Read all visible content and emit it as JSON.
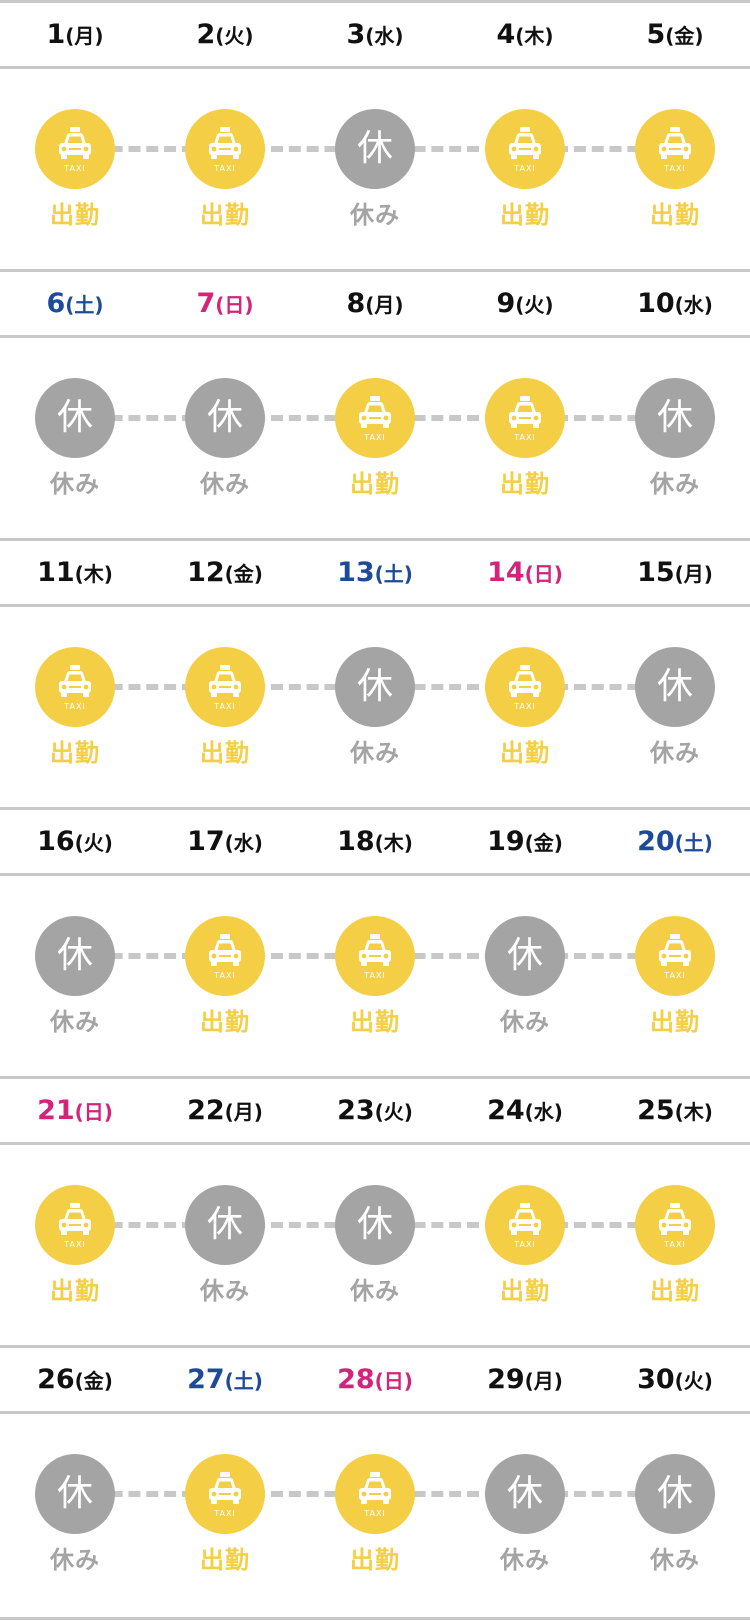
{
  "colors": {
    "work": "#f4cf46",
    "rest": "#a4a4a4",
    "saturday": "#1d4a9a",
    "sunday": "#d4247a",
    "weekday": "#111111",
    "divider": "#c8c8c8"
  },
  "icons": {
    "work": "taxi-icon",
    "rest": "rest-kanji-icon"
  },
  "labels": {
    "work": "出勤",
    "rest": "休み",
    "rest_glyph": "休",
    "taxi_text": "TAXI"
  },
  "weeks": [
    {
      "days": [
        {
          "day": "1",
          "dow": "(月)",
          "type": "weekday",
          "status": "work"
        },
        {
          "day": "2",
          "dow": "(火)",
          "type": "weekday",
          "status": "work"
        },
        {
          "day": "3",
          "dow": "(水)",
          "type": "weekday",
          "status": "rest"
        },
        {
          "day": "4",
          "dow": "(木)",
          "type": "weekday",
          "status": "work"
        },
        {
          "day": "5",
          "dow": "(金)",
          "type": "weekday",
          "status": "work"
        }
      ]
    },
    {
      "days": [
        {
          "day": "6",
          "dow": "(土)",
          "type": "saturday",
          "status": "rest"
        },
        {
          "day": "7",
          "dow": "(日)",
          "type": "sunday",
          "status": "rest"
        },
        {
          "day": "8",
          "dow": "(月)",
          "type": "weekday",
          "status": "work"
        },
        {
          "day": "9",
          "dow": "(火)",
          "type": "weekday",
          "status": "work"
        },
        {
          "day": "10",
          "dow": "(水)",
          "type": "weekday",
          "status": "rest"
        }
      ]
    },
    {
      "days": [
        {
          "day": "11",
          "dow": "(木)",
          "type": "weekday",
          "status": "work"
        },
        {
          "day": "12",
          "dow": "(金)",
          "type": "weekday",
          "status": "work"
        },
        {
          "day": "13",
          "dow": "(土)",
          "type": "saturday",
          "status": "rest"
        },
        {
          "day": "14",
          "dow": "(日)",
          "type": "sunday",
          "status": "work"
        },
        {
          "day": "15",
          "dow": "(月)",
          "type": "weekday",
          "status": "rest"
        }
      ]
    },
    {
      "days": [
        {
          "day": "16",
          "dow": "(火)",
          "type": "weekday",
          "status": "rest"
        },
        {
          "day": "17",
          "dow": "(水)",
          "type": "weekday",
          "status": "work"
        },
        {
          "day": "18",
          "dow": "(木)",
          "type": "weekday",
          "status": "work"
        },
        {
          "day": "19",
          "dow": "(金)",
          "type": "weekday",
          "status": "rest"
        },
        {
          "day": "20",
          "dow": "(土)",
          "type": "saturday",
          "status": "work"
        }
      ]
    },
    {
      "days": [
        {
          "day": "21",
          "dow": "(日)",
          "type": "sunday",
          "status": "work"
        },
        {
          "day": "22",
          "dow": "(月)",
          "type": "weekday",
          "status": "rest"
        },
        {
          "day": "23",
          "dow": "(火)",
          "type": "weekday",
          "status": "rest"
        },
        {
          "day": "24",
          "dow": "(水)",
          "type": "weekday",
          "status": "work"
        },
        {
          "day": "25",
          "dow": "(木)",
          "type": "weekday",
          "status": "work"
        }
      ]
    },
    {
      "days": [
        {
          "day": "26",
          "dow": "(金)",
          "type": "weekday",
          "status": "rest"
        },
        {
          "day": "27",
          "dow": "(土)",
          "type": "saturday",
          "status": "work"
        },
        {
          "day": "28",
          "dow": "(日)",
          "type": "sunday",
          "status": "work"
        },
        {
          "day": "29",
          "dow": "(月)",
          "type": "weekday",
          "status": "rest"
        },
        {
          "day": "30",
          "dow": "(火)",
          "type": "weekday",
          "status": "rest"
        }
      ]
    }
  ]
}
